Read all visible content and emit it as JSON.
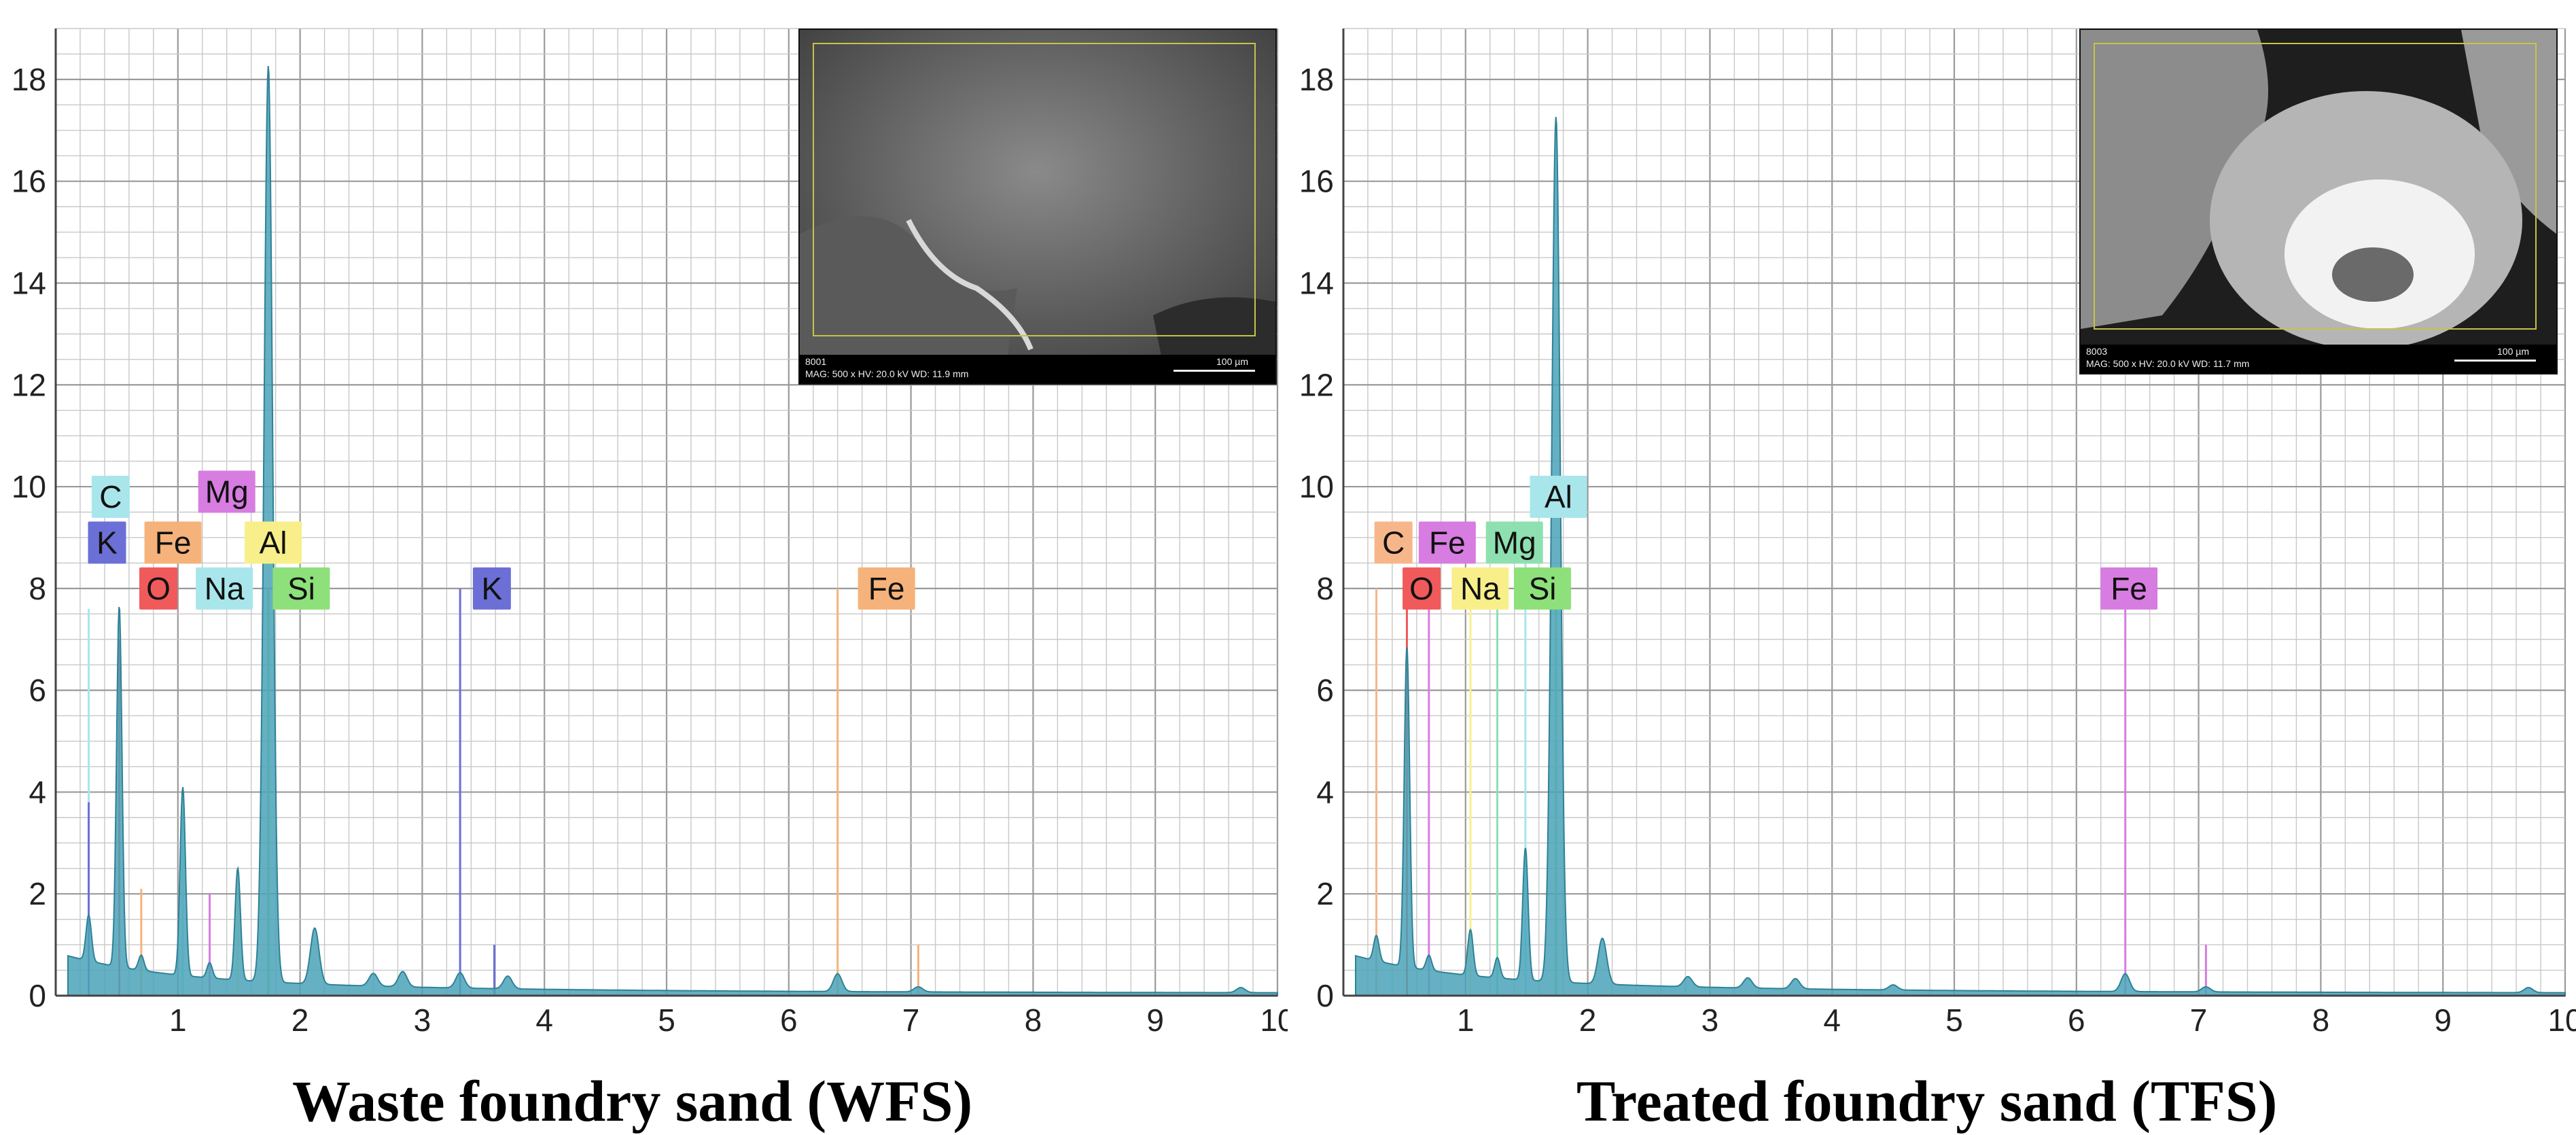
{
  "chart_data": [
    {
      "type": "area",
      "caption": "Waste foundry sand (WFS)",
      "xlim": [
        0,
        10
      ],
      "ylim": [
        0,
        19
      ],
      "x_ticks": [
        1,
        2,
        3,
        4,
        5,
        6,
        7,
        8,
        9,
        10
      ],
      "y_ticks": [
        0,
        2,
        4,
        6,
        8,
        10,
        12,
        14,
        16,
        18
      ],
      "grid": true,
      "spectrum_color": "#4aa3b8",
      "peaks": [
        {
          "x": 0.27,
          "y": 0.9
        },
        {
          "x": 0.52,
          "y": 7.1
        },
        {
          "x": 0.7,
          "y": 0.3
        },
        {
          "x": 1.04,
          "y": 3.7
        },
        {
          "x": 1.26,
          "y": 0.3
        },
        {
          "x": 1.49,
          "y": 2.2
        },
        {
          "x": 1.74,
          "y": 18.0
        },
        {
          "x": 2.12,
          "y": 1.1
        },
        {
          "x": 2.6,
          "y": 0.25
        },
        {
          "x": 2.84,
          "y": 0.3
        },
        {
          "x": 3.31,
          "y": 0.3
        },
        {
          "x": 3.7,
          "y": 0.25
        },
        {
          "x": 6.4,
          "y": 0.35
        },
        {
          "x": 7.06,
          "y": 0.1
        },
        {
          "x": 9.7,
          "y": 0.1
        }
      ],
      "element_lines": [
        {
          "element": "C",
          "x": 0.27,
          "y": 7.6,
          "color": "#a8e6ec"
        },
        {
          "element": "K",
          "x": 0.27,
          "y": 3.8,
          "color": "#6b6fd6"
        },
        {
          "element": "O",
          "x": 0.52,
          "y": 7.0,
          "color": "#f05a5a"
        },
        {
          "element": "Fe",
          "x": 0.7,
          "y": 2.1,
          "color": "#f5b27a"
        },
        {
          "element": "Na",
          "x": 1.04,
          "y": 3.6,
          "color": "#a8e6ec"
        },
        {
          "element": "Mg",
          "x": 1.26,
          "y": 2.0,
          "color": "#d77ce0"
        },
        {
          "element": "Al",
          "x": 1.49,
          "y": 2.0,
          "color": "#f8ef8a"
        },
        {
          "element": "Si",
          "x": 1.74,
          "y": 8.0,
          "color": "#8ee07a"
        },
        {
          "element": "K",
          "x": 3.31,
          "y": 8.0,
          "color": "#6b6fd6"
        },
        {
          "element": "Fe",
          "x": 6.4,
          "y": 8.0,
          "color": "#f5b27a"
        },
        {
          "element": "Fe",
          "x": 7.06,
          "y": 1.0,
          "color": "#f5b27a"
        },
        {
          "element": "K",
          "x": 3.59,
          "y": 1.0,
          "color": "#6b6fd6"
        }
      ],
      "element_labels": [
        {
          "text": "C",
          "x": 0.45,
          "y": 9.8,
          "color": "#a8e6ec"
        },
        {
          "text": "Mg",
          "x": 1.4,
          "y": 9.9,
          "color": "#d77ce0"
        },
        {
          "text": "K",
          "x": 0.42,
          "y": 8.9,
          "color": "#6b6fd6"
        },
        {
          "text": "Fe",
          "x": 0.96,
          "y": 8.9,
          "color": "#f5b27a"
        },
        {
          "text": "Al",
          "x": 1.78,
          "y": 8.9,
          "color": "#f8ef8a"
        },
        {
          "text": "O",
          "x": 0.84,
          "y": 8.0,
          "color": "#f05a5a"
        },
        {
          "text": "Na",
          "x": 1.38,
          "y": 8.0,
          "color": "#a8e6ec"
        },
        {
          "text": "Si",
          "x": 2.01,
          "y": 8.0,
          "color": "#8ee07a"
        },
        {
          "text": "K",
          "x": 3.57,
          "y": 8.0,
          "color": "#6b6fd6"
        },
        {
          "text": "Fe",
          "x": 6.8,
          "y": 8.0,
          "color": "#f5b27a"
        }
      ],
      "sem_inset": {
        "line1": "8001",
        "line2": "MAG: 500 x HV: 20.0 kV WD: 11.9 mm",
        "scale": "100 µm"
      }
    },
    {
      "type": "area",
      "caption": "Treated foundry sand (TFS)",
      "xlim": [
        0,
        10
      ],
      "ylim": [
        0,
        19
      ],
      "x_ticks": [
        1,
        2,
        3,
        4,
        5,
        6,
        7,
        8,
        9,
        10
      ],
      "y_ticks": [
        0,
        2,
        4,
        6,
        8,
        10,
        12,
        14,
        16,
        18
      ],
      "grid": true,
      "spectrum_color": "#4aa3b8",
      "peaks": [
        {
          "x": 0.27,
          "y": 0.5
        },
        {
          "x": 0.52,
          "y": 6.3
        },
        {
          "x": 0.7,
          "y": 0.3
        },
        {
          "x": 1.04,
          "y": 0.9
        },
        {
          "x": 1.26,
          "y": 0.4
        },
        {
          "x": 1.49,
          "y": 2.6
        },
        {
          "x": 1.74,
          "y": 17.0
        },
        {
          "x": 2.12,
          "y": 0.9
        },
        {
          "x": 2.82,
          "y": 0.2
        },
        {
          "x": 3.31,
          "y": 0.2
        },
        {
          "x": 3.7,
          "y": 0.2
        },
        {
          "x": 4.5,
          "y": 0.1
        },
        {
          "x": 6.4,
          "y": 0.35
        },
        {
          "x": 7.06,
          "y": 0.1
        },
        {
          "x": 9.7,
          "y": 0.1
        }
      ],
      "element_lines": [
        {
          "element": "C",
          "x": 0.27,
          "y": 8.0,
          "color": "#f7b68a"
        },
        {
          "element": "O",
          "x": 0.52,
          "y": 7.7,
          "color": "#f05a5a"
        },
        {
          "element": "Fe",
          "x": 0.7,
          "y": 8.0,
          "color": "#d77ce0"
        },
        {
          "element": "Na",
          "x": 1.04,
          "y": 8.0,
          "color": "#f8ef8a"
        },
        {
          "element": "Mg",
          "x": 1.26,
          "y": 8.0,
          "color": "#8ee0b0"
        },
        {
          "element": "Al",
          "x": 1.49,
          "y": 9.3,
          "color": "#a8e6ec"
        },
        {
          "element": "Si",
          "x": 1.74,
          "y": 8.0,
          "color": "#8ee07a"
        },
        {
          "element": "Fe",
          "x": 6.4,
          "y": 8.0,
          "color": "#d77ce0"
        },
        {
          "element": "Fe",
          "x": 7.06,
          "y": 1.0,
          "color": "#d77ce0"
        }
      ],
      "element_labels": [
        {
          "text": "Al",
          "x": 1.76,
          "y": 9.8,
          "color": "#a8e6ec"
        },
        {
          "text": "C",
          "x": 0.41,
          "y": 8.9,
          "color": "#f7b68a"
        },
        {
          "text": "Fe",
          "x": 0.85,
          "y": 8.9,
          "color": "#d77ce0"
        },
        {
          "text": "Mg",
          "x": 1.4,
          "y": 8.9,
          "color": "#8ee0b0"
        },
        {
          "text": "O",
          "x": 0.64,
          "y": 8.0,
          "color": "#f05a5a"
        },
        {
          "text": "Na",
          "x": 1.12,
          "y": 8.0,
          "color": "#f8ef8a"
        },
        {
          "text": "Si",
          "x": 1.63,
          "y": 8.0,
          "color": "#8ee07a"
        },
        {
          "text": "Fe",
          "x": 6.43,
          "y": 8.0,
          "color": "#d77ce0"
        }
      ],
      "sem_inset": {
        "line1": "8003",
        "line2": "MAG: 500 x HV: 20.0 kV WD: 11.7 mm",
        "scale": "100 µm"
      }
    }
  ]
}
